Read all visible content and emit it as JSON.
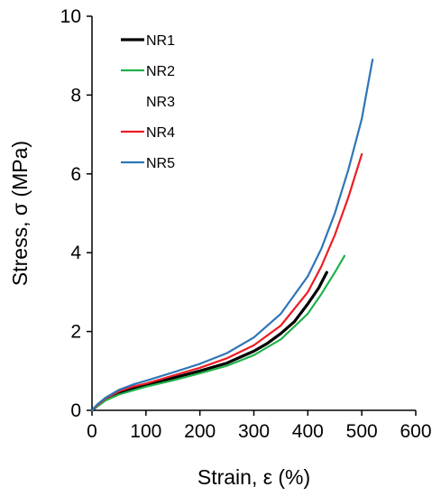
{
  "chart_data": {
    "type": "line",
    "xlabel": "Strain, ε  (%)",
    "ylabel": "Stress, σ (MPa)",
    "xlim": [
      0,
      600
    ],
    "ylim": [
      0,
      10
    ],
    "xticks": [
      "0",
      "100",
      "200",
      "300",
      "400",
      "500",
      "600"
    ],
    "yticks": [
      "0",
      "2",
      "4",
      "6",
      "8",
      "10"
    ],
    "grid": false,
    "legend_position": "top-left",
    "series": [
      {
        "name": "NR1",
        "color": "#000000",
        "x": [
          0,
          10,
          25,
          50,
          75,
          100,
          150,
          200,
          250,
          300,
          325,
          350,
          375,
          400,
          420,
          435
        ],
        "y": [
          0,
          0.12,
          0.28,
          0.45,
          0.56,
          0.64,
          0.82,
          1.0,
          1.2,
          1.5,
          1.7,
          1.95,
          2.25,
          2.7,
          3.1,
          3.5
        ]
      },
      {
        "name": "NR2",
        "color": "#22b14c",
        "x": [
          0,
          10,
          25,
          50,
          75,
          100,
          150,
          200,
          250,
          300,
          350,
          400,
          425,
          450,
          468
        ],
        "y": [
          0,
          0.1,
          0.25,
          0.4,
          0.5,
          0.6,
          0.76,
          0.94,
          1.13,
          1.4,
          1.8,
          2.45,
          2.95,
          3.5,
          3.92
        ]
      },
      {
        "name": "NR3",
        "color": "#ffffff",
        "x": [],
        "y": []
      },
      {
        "name": "NR4",
        "color": "#ed1c24",
        "x": [
          0,
          10,
          25,
          50,
          75,
          100,
          150,
          200,
          250,
          300,
          350,
          400,
          425,
          450,
          475,
          500
        ],
        "y": [
          0,
          0.13,
          0.3,
          0.48,
          0.6,
          0.68,
          0.88,
          1.08,
          1.32,
          1.65,
          2.15,
          3.0,
          3.65,
          4.45,
          5.4,
          6.5
        ]
      },
      {
        "name": "NR5",
        "color": "#2e75b6",
        "x": [
          0,
          10,
          25,
          50,
          75,
          100,
          150,
          200,
          250,
          300,
          350,
          400,
          425,
          450,
          475,
          500,
          520
        ],
        "y": [
          0,
          0.15,
          0.32,
          0.52,
          0.65,
          0.75,
          0.96,
          1.18,
          1.45,
          1.85,
          2.45,
          3.4,
          4.1,
          5.0,
          6.1,
          7.4,
          8.9
        ]
      }
    ]
  }
}
